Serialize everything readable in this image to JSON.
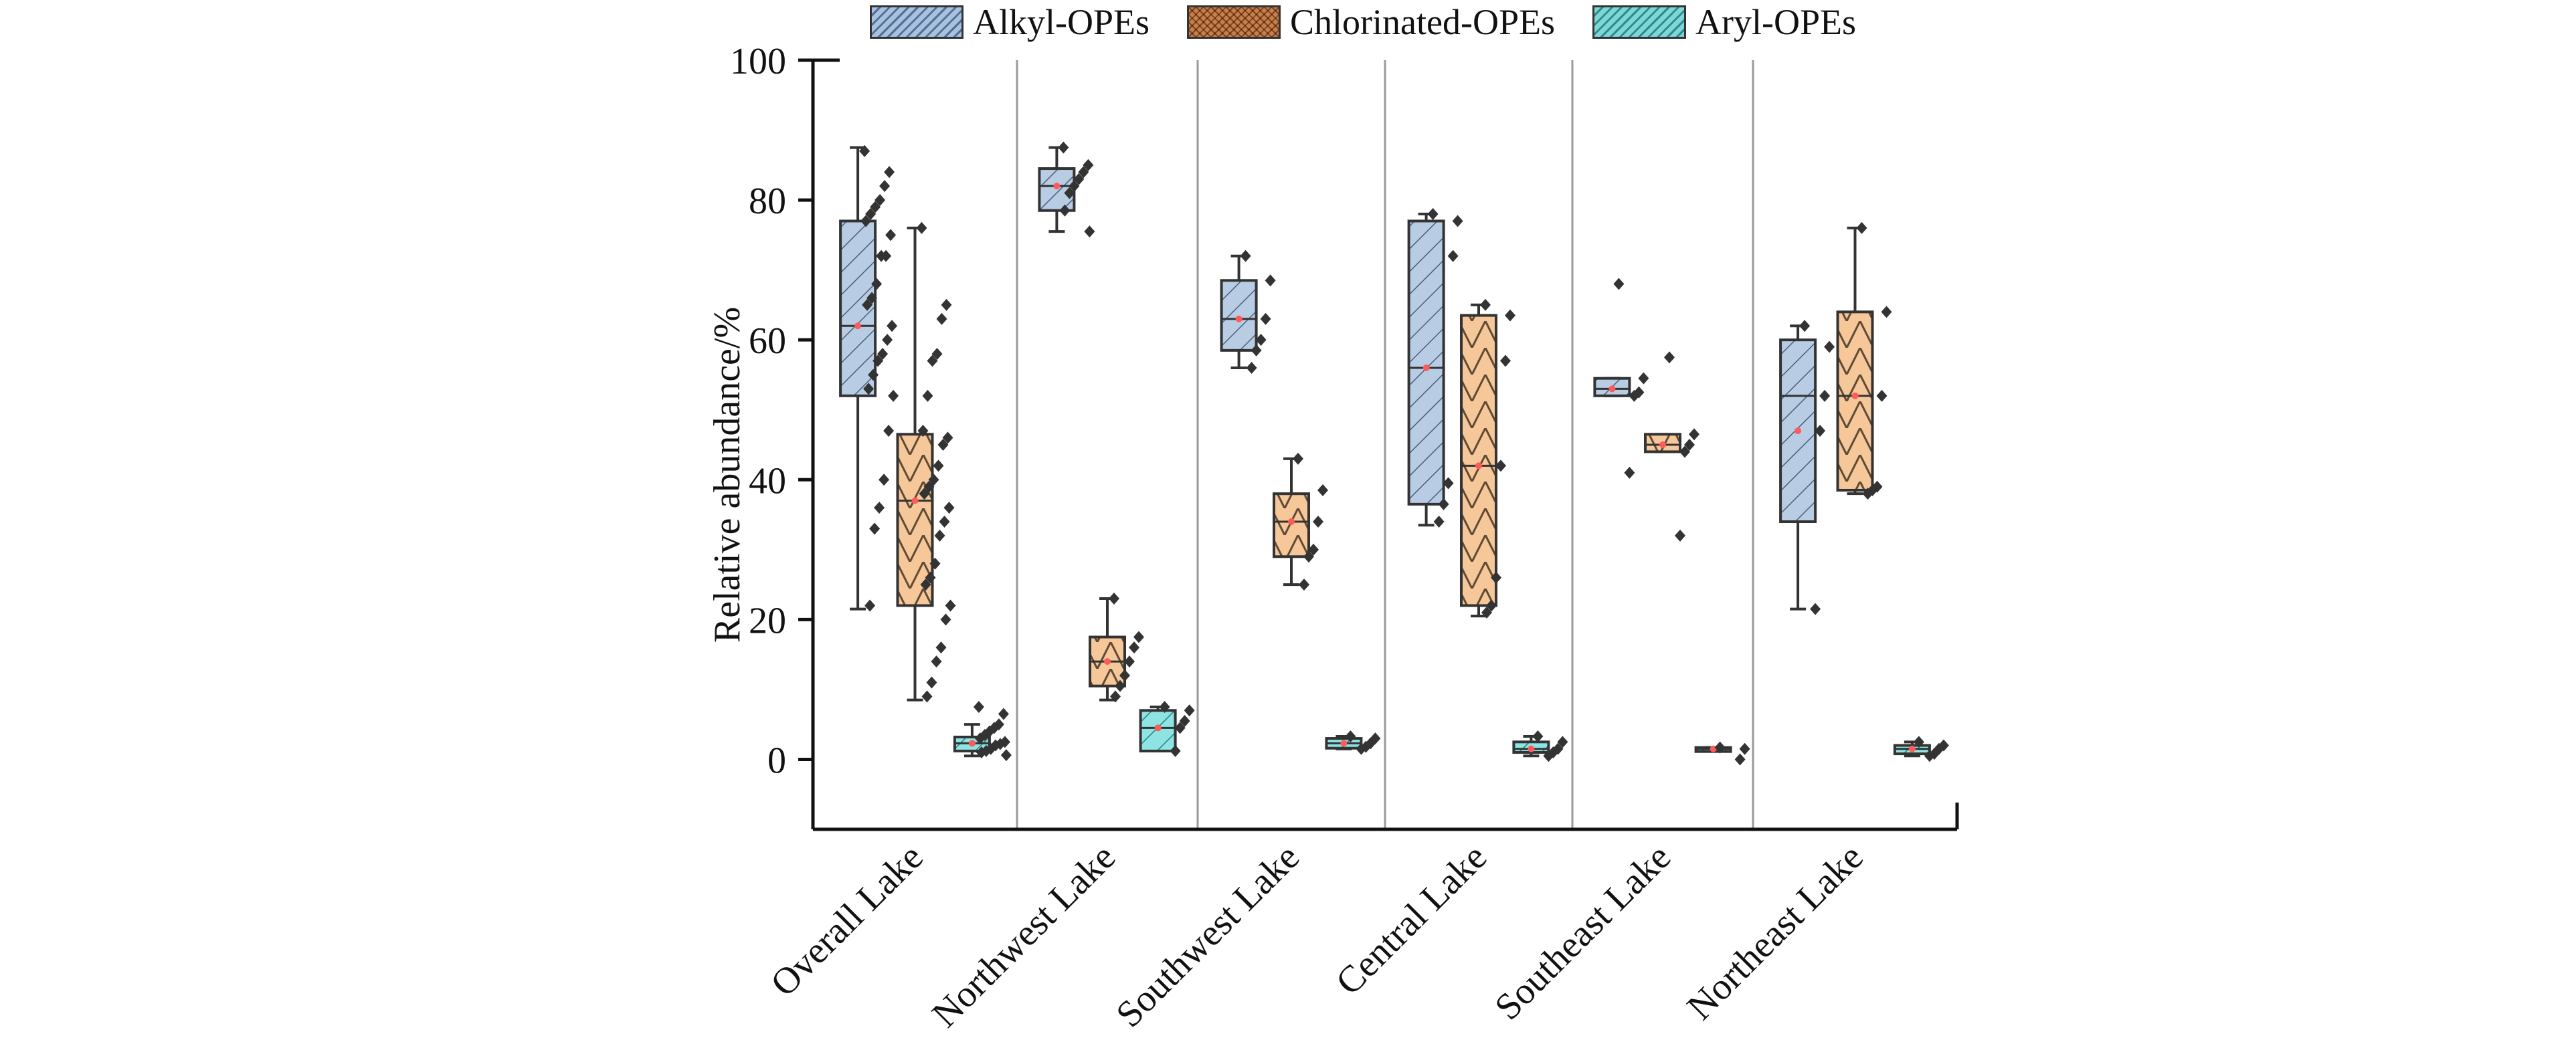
{
  "chart_data": {
    "type": "box",
    "ylabel": "Relative abundance/%",
    "ylim": [
      -10,
      100
    ],
    "yticks": [
      "0",
      "20",
      "40",
      "60",
      "80",
      "100"
    ],
    "categories": [
      "Overall Lake",
      "Northwest Lake",
      "Southwest Lake",
      "Central Lake",
      "Southeast Lake",
      "Northeast Lake"
    ],
    "legend_position": "top",
    "series": [
      {
        "name": "Alkyl-OPEs",
        "color": "#b8cce4",
        "boxes": [
          {
            "min": 21.5,
            "q1": 52,
            "median": 62,
            "mean": 62,
            "q3": 77,
            "max": 87.5,
            "points": [
              87,
              84,
              82,
              80,
              79,
              78,
              77,
              75,
              72,
              72,
              68,
              66,
              65,
              62,
              60,
              58,
              57,
              55,
              53,
              52,
              47,
              40,
              36,
              33,
              22
            ]
          },
          {
            "min": 75.5,
            "q1": 78.5,
            "median": 82,
            "mean": 82,
            "q3": 84.5,
            "max": 87.5,
            "points": [
              87.5,
              85,
              84,
              83,
              82,
              81,
              78.5,
              75.5
            ]
          },
          {
            "min": 56,
            "q1": 58.5,
            "median": 63,
            "mean": 63,
            "q3": 68.5,
            "max": 72,
            "points": [
              72,
              68.5,
              63,
              60,
              58.5,
              56
            ]
          },
          {
            "min": 33.5,
            "q1": 36.5,
            "median": 56,
            "mean": 56,
            "q3": 77,
            "max": 78,
            "points": [
              78,
              77,
              72,
              39.5,
              36.5,
              34
            ]
          },
          {
            "min": 52,
            "q1": 52,
            "median": 53,
            "mean": 53,
            "q3": 54.5,
            "max": 54.5,
            "points": [
              68,
              54.5,
              52.5,
              52,
              41
            ]
          },
          {
            "min": 21.5,
            "q1": 34,
            "median": 52,
            "mean": 47,
            "q3": 60,
            "max": 62,
            "points": [
              62,
              59,
              52,
              47,
              21.5
            ]
          }
        ]
      },
      {
        "name": "Chlorinated-OPEs",
        "color": "#f5c799",
        "boxes": [
          {
            "min": 8.5,
            "q1": 22,
            "median": 37,
            "mean": 37,
            "q3": 46.5,
            "max": 76,
            "points": [
              76,
              65,
              63,
              58,
              57,
              52,
              47,
              46,
              45,
              42,
              40,
              39,
              38,
              36,
              34,
              32,
              28,
              26,
              25,
              22,
              20,
              16,
              14,
              11,
              9
            ]
          },
          {
            "min": 8.5,
            "q1": 10.5,
            "median": 14,
            "mean": 14,
            "q3": 17.5,
            "max": 23,
            "points": [
              23,
              17.5,
              16,
              14,
              12,
              10.5,
              9
            ]
          },
          {
            "min": 25,
            "q1": 29,
            "median": 34,
            "mean": 34,
            "q3": 38,
            "max": 43,
            "points": [
              43,
              38.5,
              34,
              30,
              29,
              25
            ]
          },
          {
            "min": 20.5,
            "q1": 22,
            "median": 42,
            "mean": 42,
            "q3": 63.5,
            "max": 65,
            "points": [
              65,
              63.5,
              57,
              42,
              26,
              22,
              21
            ]
          },
          {
            "min": 44,
            "q1": 44,
            "median": 45,
            "mean": 45,
            "q3": 46.5,
            "max": 46.5,
            "points": [
              57.5,
              46.5,
              45,
              44,
              32
            ]
          },
          {
            "min": 38,
            "q1": 38.5,
            "median": 52,
            "mean": 52,
            "q3": 64,
            "max": 76,
            "points": [
              76,
              64,
              52,
              39,
              38.5,
              38
            ]
          }
        ]
      },
      {
        "name": "Aryl-OPEs",
        "color": "#8ee3e3",
        "boxes": [
          {
            "min": 0.5,
            "q1": 1.2,
            "median": 2.3,
            "mean": 2.3,
            "q3": 3.2,
            "max": 5,
            "points": [
              7.5,
              6.5,
              5,
              4.5,
              4,
              3.5,
              3,
              2.5,
              2.2,
              2,
              1.5,
              1.2,
              1,
              0.6
            ]
          },
          {
            "min": 1.2,
            "q1": 1.2,
            "median": 4.5,
            "mean": 4.5,
            "q3": 7,
            "max": 7.5,
            "points": [
              7.5,
              7,
              5.5,
              4.5,
              1.2
            ]
          },
          {
            "min": 1.5,
            "q1": 1.6,
            "median": 2.3,
            "mean": 2.3,
            "q3": 3,
            "max": 3.3,
            "points": [
              3.3,
              3,
              2.3,
              1.8,
              1.5
            ]
          },
          {
            "min": 0.5,
            "q1": 1,
            "median": 1.5,
            "mean": 1.5,
            "q3": 2.5,
            "max": 3.3,
            "points": [
              3.3,
              2.5,
              1.5,
              1,
              0.5
            ]
          },
          {
            "min": 1.5,
            "q1": 1.5,
            "median": 1.5,
            "mean": 1.5,
            "q3": 1.7,
            "max": 1.7,
            "points": [
              1.7,
              1.5,
              0
            ]
          },
          {
            "min": 0.5,
            "q1": 0.8,
            "median": 1.5,
            "mean": 1.5,
            "q3": 2,
            "max": 2.5,
            "points": [
              2.5,
              2,
              1.5,
              0.8,
              0.5
            ]
          }
        ]
      }
    ]
  }
}
